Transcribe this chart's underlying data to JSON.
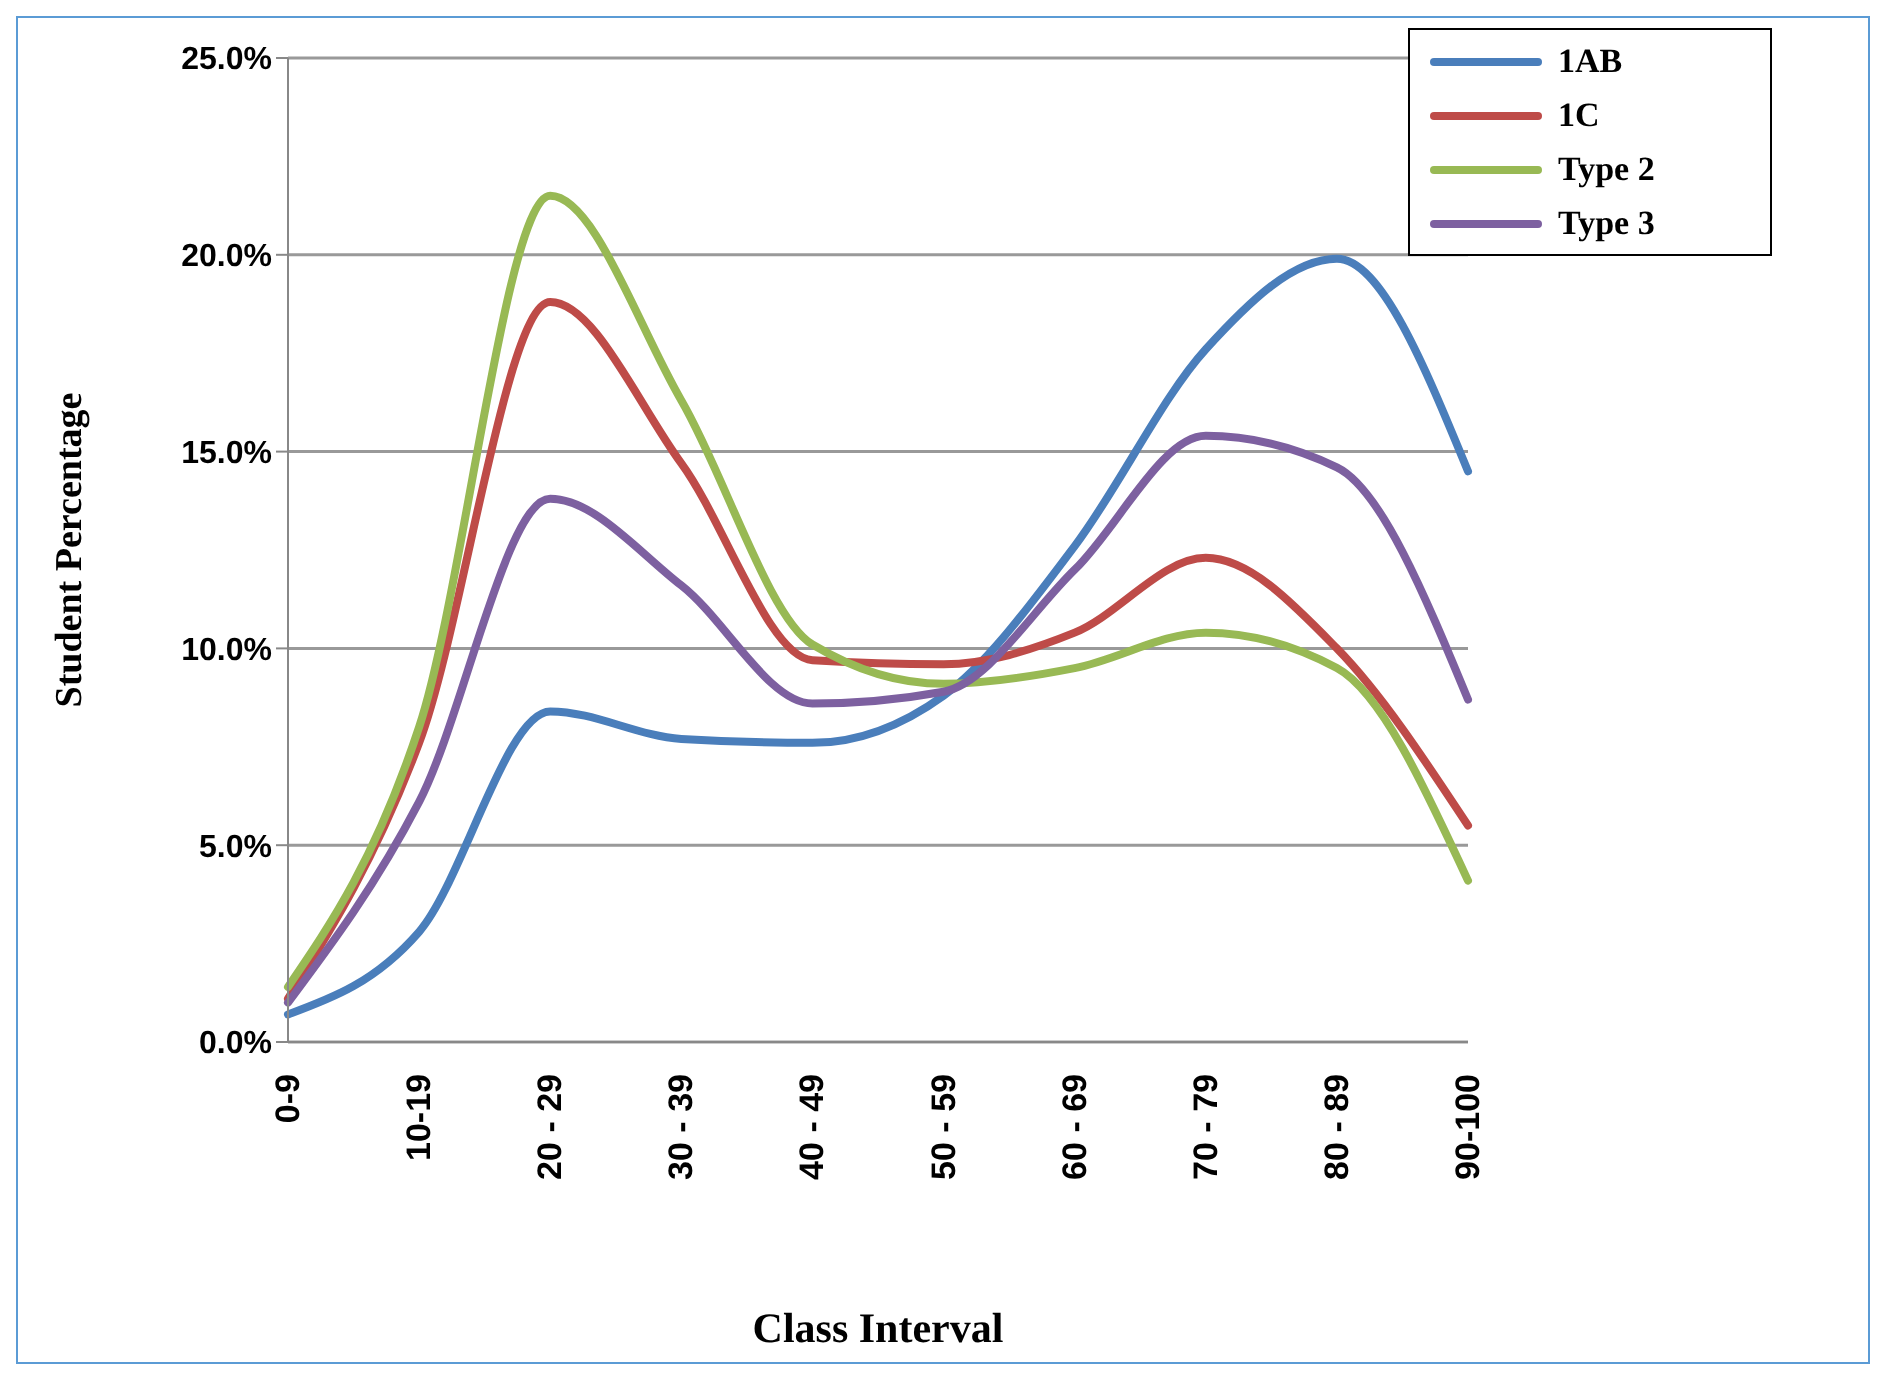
{
  "chart_data": {
    "type": "line",
    "xlabel": "Class Interval",
    "ylabel": "Student Percentage",
    "categories": [
      "0-9",
      "10-19",
      "20 - 29",
      "30 - 39",
      "40 - 49",
      "50 - 59",
      "60 - 69",
      "70 - 79",
      "80 - 89",
      "90-100"
    ],
    "series": [
      {
        "name": "1AB",
        "color": "#4a7ebb",
        "values": [
          0.7,
          2.8,
          8.4,
          7.7,
          7.6,
          8.8,
          12.6,
          17.6,
          19.9,
          14.5
        ]
      },
      {
        "name": "1C",
        "color": "#be4b48",
        "values": [
          1.1,
          7.6,
          18.8,
          14.7,
          9.7,
          9.6,
          10.4,
          12.3,
          10.0,
          5.5
        ]
      },
      {
        "name": "Type 2",
        "color": "#98b954",
        "values": [
          1.4,
          8.0,
          21.5,
          16.3,
          10.1,
          9.1,
          9.5,
          10.4,
          9.5,
          4.1
        ]
      },
      {
        "name": "Type 3",
        "color": "#7d60a0",
        "values": [
          1.0,
          6.1,
          13.8,
          11.6,
          8.6,
          8.9,
          12.0,
          15.4,
          14.6,
          8.7
        ]
      }
    ],
    "ylim": [
      0,
      25
    ],
    "yticks": [
      {
        "value": 0,
        "label": "0.0%"
      },
      {
        "value": 5,
        "label": "5.0%"
      },
      {
        "value": 10,
        "label": "10.0%"
      },
      {
        "value": 15,
        "label": "15.0%"
      },
      {
        "value": 20,
        "label": "20.0%"
      },
      {
        "value": 25,
        "label": "25.0%"
      }
    ],
    "grid": "y",
    "legend": "top right",
    "marker": "none",
    "line_style": "solid"
  }
}
